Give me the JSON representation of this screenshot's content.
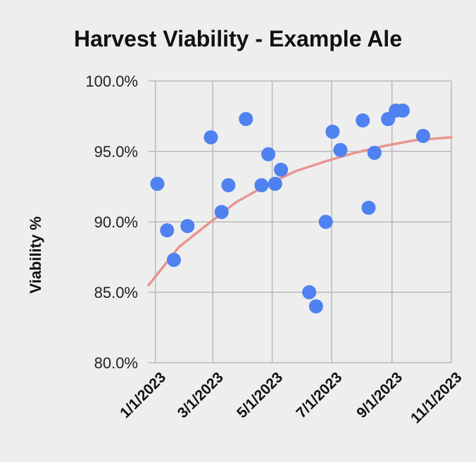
{
  "chart_data": {
    "type": "scatter",
    "title": "Harvest Viability - Example Ale",
    "xlabel": "",
    "ylabel": "Viability %",
    "x_type": "date",
    "xlim": [
      "2022-12-25",
      "2023-11-01"
    ],
    "ylim": [
      80,
      100
    ],
    "x_ticks": [
      "2023-01-01",
      "2023-03-01",
      "2023-05-01",
      "2023-07-01",
      "2023-09-01",
      "2023-11-01"
    ],
    "x_tick_labels": [
      "1/1/2023",
      "3/1/2023",
      "5/1/2023",
      "7/1/2023",
      "9/1/2023",
      "11/1/2023"
    ],
    "y_ticks": [
      80,
      85,
      90,
      95,
      100
    ],
    "y_tick_labels": [
      "80.0%",
      "85.0%",
      "90.0%",
      "95.0%",
      "100.0%"
    ],
    "grid": true,
    "legend": "none",
    "series": [
      {
        "color": "#4f81f0",
        "points": [
          {
            "x": "2023-01-03",
            "y": 92.7
          },
          {
            "x": "2023-01-13",
            "y": 89.4
          },
          {
            "x": "2023-01-20",
            "y": 87.3
          },
          {
            "x": "2023-02-03",
            "y": 89.7
          },
          {
            "x": "2023-02-27",
            "y": 96.0
          },
          {
            "x": "2023-03-10",
            "y": 90.7
          },
          {
            "x": "2023-03-17",
            "y": 92.6
          },
          {
            "x": "2023-04-04",
            "y": 97.3
          },
          {
            "x": "2023-04-20",
            "y": 92.6
          },
          {
            "x": "2023-04-27",
            "y": 94.8
          },
          {
            "x": "2023-05-04",
            "y": 92.7
          },
          {
            "x": "2023-05-10",
            "y": 93.7
          },
          {
            "x": "2023-06-08",
            "y": 85.0
          },
          {
            "x": "2023-06-15",
            "y": 84.0
          },
          {
            "x": "2023-06-25",
            "y": 90.0
          },
          {
            "x": "2023-07-02",
            "y": 96.4
          },
          {
            "x": "2023-07-10",
            "y": 95.1
          },
          {
            "x": "2023-08-02",
            "y": 97.2
          },
          {
            "x": "2023-08-08",
            "y": 91.0
          },
          {
            "x": "2023-08-14",
            "y": 94.9
          },
          {
            "x": "2023-08-28",
            "y": 97.3
          },
          {
            "x": "2023-09-05",
            "y": 97.9
          },
          {
            "x": "2023-09-12",
            "y": 97.9
          },
          {
            "x": "2023-10-03",
            "y": 96.1
          }
        ]
      }
    ],
    "trendline": {
      "type": "polynomial",
      "color": "#e89590",
      "points": [
        {
          "x": "2022-12-25",
          "y": 85.5
        },
        {
          "x": "2023-01-25",
          "y": 88.2
        },
        {
          "x": "2023-02-25",
          "y": 89.9
        },
        {
          "x": "2023-03-25",
          "y": 91.4
        },
        {
          "x": "2023-04-25",
          "y": 92.6
        },
        {
          "x": "2023-05-25",
          "y": 93.6
        },
        {
          "x": "2023-06-25",
          "y": 94.3
        },
        {
          "x": "2023-07-25",
          "y": 94.9
        },
        {
          "x": "2023-08-25",
          "y": 95.4
        },
        {
          "x": "2023-09-25",
          "y": 95.8
        },
        {
          "x": "2023-11-01",
          "y": 96.0
        }
      ]
    }
  }
}
